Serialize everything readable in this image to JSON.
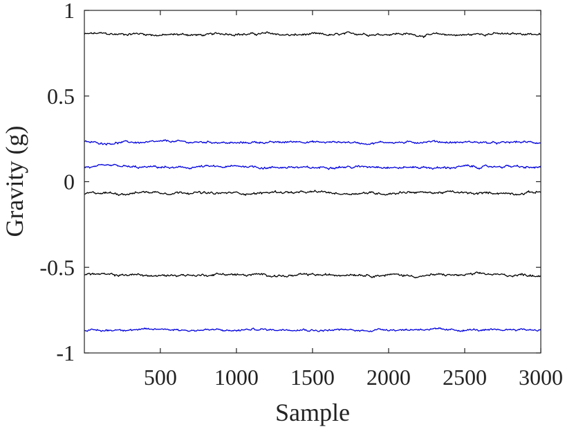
{
  "chart_data": {
    "type": "line",
    "title": "",
    "xlabel": "Sample",
    "ylabel": "Gravity (g)",
    "xlim": [
      1,
      3000
    ],
    "ylim": [
      -1,
      1
    ],
    "xticks": [
      500,
      1000,
      1500,
      2000,
      2500,
      3000
    ],
    "yticks": [
      -1,
      -0.5,
      0,
      0.5,
      1
    ],
    "ytick_labels": [
      "-1",
      "-0.5",
      "0",
      "0.5",
      "1"
    ],
    "grid": false,
    "legend": "none",
    "series_colors": {
      "black": "#000000",
      "blue": "#0000dd"
    },
    "series": [
      {
        "color": "black",
        "mean": 0.86,
        "noise": 0.008,
        "x": [
          1,
          3000
        ]
      },
      {
        "color": "blue",
        "mean": 0.23,
        "noise": 0.007,
        "x": [
          1,
          3000
        ]
      },
      {
        "color": "blue",
        "mean": 0.085,
        "noise": 0.008,
        "x": [
          1,
          3000
        ]
      },
      {
        "color": "black",
        "mean": -0.065,
        "noise": 0.008,
        "x": [
          1,
          3000
        ]
      },
      {
        "color": "black",
        "mean": -0.545,
        "noise": 0.008,
        "x": [
          1,
          3000
        ]
      },
      {
        "color": "blue",
        "mean": -0.865,
        "noise": 0.007,
        "x": [
          1,
          3000
        ]
      }
    ]
  }
}
